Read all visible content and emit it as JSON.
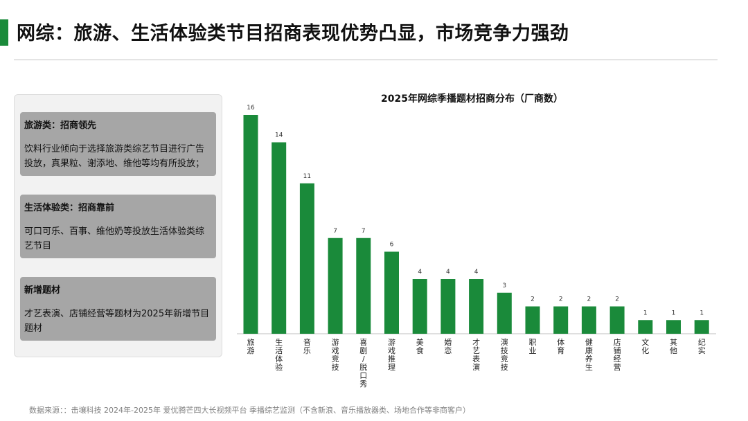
{
  "page": {
    "title": "网综：旅游、生活体验类节目招商表现优势凸显，市场竞争力强劲",
    "accent_color": "#1a8a3a"
  },
  "left_panel": {
    "cards": [
      {
        "heading": "旅游类：招商领先",
        "body": "饮料行业倾向于选择旅游类综艺节目进行广告投放，真果粒、谢添地、维他等均有所投放；"
      },
      {
        "heading": "生活体验类：招商靠前",
        "body": "可口可乐、百事、维他奶等投放生活体验类综艺节目"
      },
      {
        "heading": "新增题材",
        "body": "才艺表演、店铺经营等题材为2025年新增节目题材"
      }
    ]
  },
  "chart_data": {
    "type": "bar",
    "title": "2025年网综季播题材招商分布（厂商数）",
    "categories": [
      "旅游",
      "生活体验",
      "音乐",
      "游戏竞技",
      "喜剧/脱口秀",
      "游戏推理",
      "美食",
      "婚恋",
      "才艺表演",
      "演技竞技",
      "职业",
      "体育",
      "健康养生",
      "店铺经营",
      "文化",
      "其他",
      "纪实"
    ],
    "values": [
      16,
      14,
      11,
      7,
      7,
      6,
      4,
      4,
      4,
      3,
      2,
      2,
      2,
      2,
      1,
      1,
      1
    ],
    "ylim": [
      0,
      16
    ],
    "bar_color": "#1a8a3a",
    "grid": false,
    "legend": "none"
  },
  "footer": {
    "source": "数据来源：：击壤科技 2024年-2025年 爱优腾芒四大长视频平台 季播综艺监测（不含新浪、音乐播放器类、场地合作等非商客户）"
  }
}
